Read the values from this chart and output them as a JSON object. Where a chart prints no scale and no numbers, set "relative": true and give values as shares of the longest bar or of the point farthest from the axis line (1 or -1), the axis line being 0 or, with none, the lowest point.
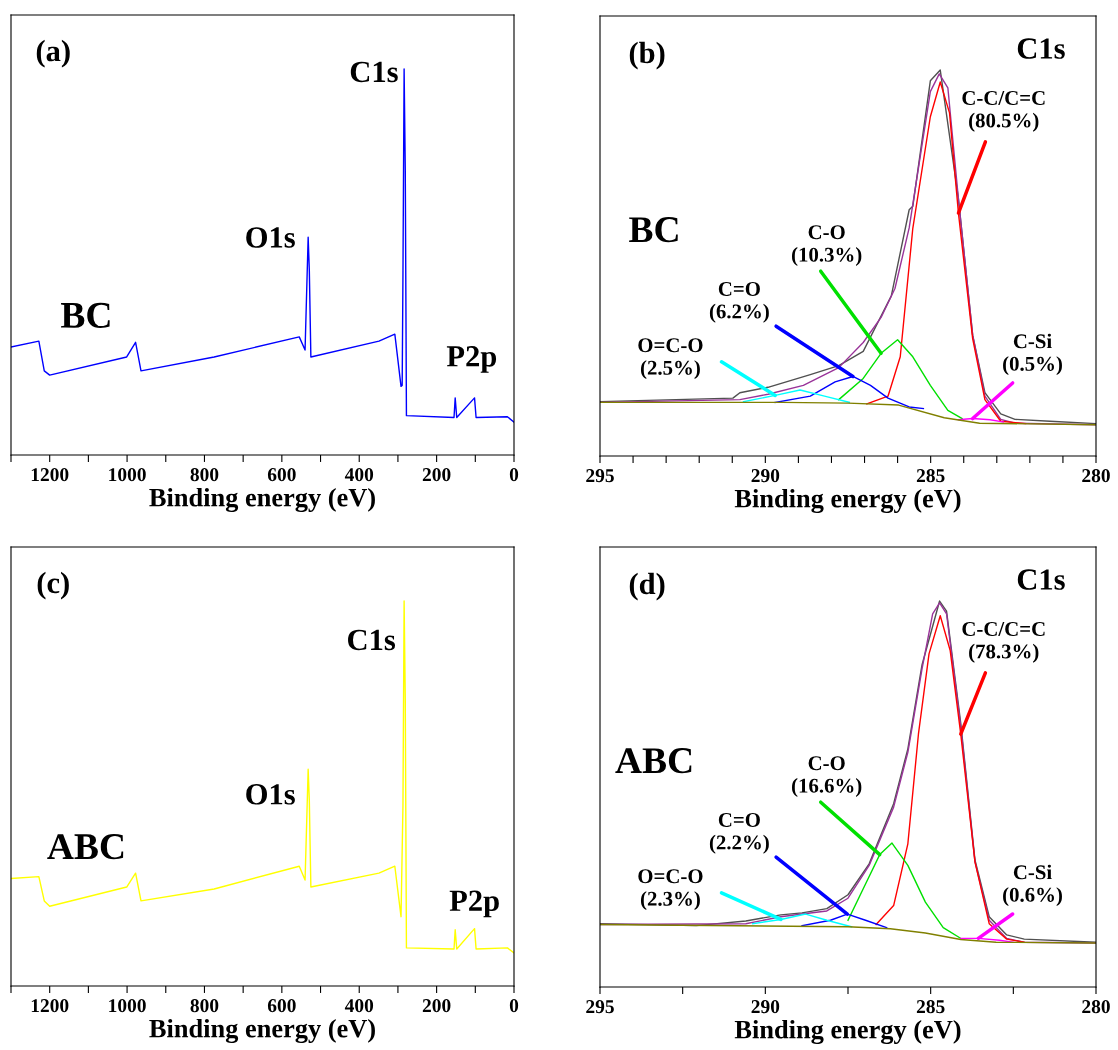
{
  "chart_data": [
    {
      "type": "line",
      "relative": true,
      "xlabel": "Binding energy (eV)",
      "xlim": [
        1300,
        0
      ],
      "xticks": [
        {
          "value": 1300,
          "label": null
        },
        1200,
        {
          "value": 1100,
          "label": null
        },
        1000,
        {
          "value": 900,
          "label": null
        },
        800,
        {
          "value": 700,
          "label": null
        },
        600,
        {
          "value": 500,
          "label": null
        },
        400,
        {
          "value": 300,
          "label": null
        },
        200,
        {
          "value": 100,
          "label": null
        },
        0
      ],
      "grid": false,
      "legend": false,
      "annotations": [
        "(a)",
        {
          "text": "C1s",
          "x": 284,
          "y": 1.0
        },
        {
          "text": "O1s",
          "x": 532,
          "y": 0.564
        },
        "BC",
        {
          "text": "P2p",
          "x": 152,
          "y": 0.148
        }
      ],
      "series": [
        {
          "color": "#0000ff",
          "x": [
            1300,
            1228,
            1214,
            1200,
            1001,
            978,
            964,
            775,
            555,
            540,
            532,
            529,
            525,
            349,
            308,
            292,
            289,
            287,
            284,
            281,
            278,
            155,
            152,
            148,
            102,
            98,
            17,
            0
          ],
          "values": [
            0.28,
            0.295,
            0.218,
            0.207,
            0.254,
            0.292,
            0.218,
            0.254,
            0.306,
            0.272,
            0.564,
            0.479,
            0.254,
            0.295,
            0.313,
            0.178,
            0.18,
            0.465,
            1.0,
            0.739,
            0.102,
            0.097,
            0.148,
            0.097,
            0.148,
            0.097,
            0.099,
            0.085
          ]
        }
      ]
    },
    {
      "type": "line",
      "relative": true,
      "xlabel": "Binding energy (eV)",
      "xlim": [
        295,
        280
      ],
      "xticks": [
        295,
        {
          "value": 294,
          "label": null
        },
        {
          "value": 293,
          "label": null
        },
        {
          "value": 292,
          "label": null
        },
        {
          "value": 291,
          "label": null
        },
        290,
        {
          "value": 289,
          "label": null
        },
        {
          "value": 288,
          "label": null
        },
        {
          "value": 287,
          "label": null
        },
        {
          "value": 286,
          "label": null
        },
        285,
        {
          "value": 284,
          "label": null
        },
        {
          "value": 283,
          "label": null
        },
        {
          "value": 282,
          "label": null
        },
        {
          "value": 281,
          "label": null
        },
        280
      ],
      "grid": false,
      "legend": false,
      "annotations": [
        "(b)",
        "C1s",
        "BC"
      ],
      "series": [
        {
          "color": "#505050",
          "x": [
            295,
            290.98,
            290.77,
            289.92,
            288.64,
            287.78,
            287.04,
            286.19,
            285.65,
            285.54,
            285.01,
            284.71,
            284.16,
            283.73,
            283.36,
            282.88,
            282.45,
            281.39,
            280
          ],
          "values": [
            0.141,
            0.15,
            0.164,
            0.178,
            0.211,
            0.234,
            0.271,
            0.415,
            0.638,
            0.647,
            0.972,
            1.0,
            0.666,
            0.313,
            0.164,
            0.109,
            0.095,
            0.09,
            0.084
          ]
        },
        {
          "color": "#993399",
          "x": [
            295,
            290.77,
            289.92,
            288.85,
            287.78,
            287.04,
            286.5,
            286.08,
            285.65,
            285.33,
            285.01,
            284.74,
            284.48,
            284.16,
            283.73,
            283.36,
            282.88,
            282.45,
            280
          ],
          "values": [
            0.139,
            0.146,
            0.16,
            0.183,
            0.229,
            0.294,
            0.359,
            0.434,
            0.591,
            0.768,
            0.944,
            0.99,
            0.954,
            0.666,
            0.313,
            0.155,
            0.095,
            0.085,
            0.081
          ]
        },
        {
          "name": "C-C/C=C\n(80.5%)",
          "color": "#ff0000",
          "x": [
            286.93,
            286.29,
            285.92,
            285.54,
            285.01,
            284.71,
            284.43,
            284.16,
            283.73,
            283.36,
            282.88,
            282.13
          ],
          "values": [
            0.135,
            0.155,
            0.257,
            0.59,
            0.879,
            0.969,
            0.889,
            0.629,
            0.304,
            0.146,
            0.09,
            0.084
          ]
        },
        {
          "name": "C-O\n(10.3%)",
          "color": "#00e000",
          "x": [
            287.78,
            287.04,
            286.5,
            286.0,
            285.54,
            285.01,
            284.48,
            284.05
          ],
          "values": [
            0.146,
            0.201,
            0.266,
            0.301,
            0.257,
            0.183,
            0.118,
            0.097
          ]
        },
        {
          "name": "C=O\n(6.2%)",
          "color": "#0000ff",
          "x": [
            289.7,
            288.64,
            287.89,
            287.35,
            286.82,
            286.29,
            285.65,
            285.22
          ],
          "values": [
            0.139,
            0.155,
            0.192,
            0.206,
            0.183,
            0.15,
            0.127,
            0.123
          ]
        },
        {
          "name": "O=C-O\n(2.5%)",
          "color": "#00ffff",
          "x": [
            290.66,
            289.7,
            288.95,
            288.21,
            287.46
          ],
          "values": [
            0.141,
            0.157,
            0.171,
            0.155,
            0.139
          ]
        },
        {
          "name": "C-Si\n(0.5%)",
          "color": "#ff00ff",
          "x": [
            284.16,
            283.73,
            283.2,
            282.8
          ],
          "values": [
            0.094,
            0.097,
            0.094,
            0.088
          ]
        },
        {
          "color": "#808000",
          "x": [
            295,
            289.5,
            287.5,
            285.97,
            284.59,
            283.52,
            280
          ],
          "values": [
            0.139,
            0.139,
            0.137,
            0.132,
            0.099,
            0.085,
            0.081
          ]
        }
      ]
    },
    {
      "type": "line",
      "relative": true,
      "xlabel": "Binding energy (eV)",
      "xlim": [
        1300,
        0
      ],
      "xticks": [
        {
          "value": 1300,
          "label": null
        },
        1200,
        {
          "value": 1100,
          "label": null
        },
        1000,
        {
          "value": 900,
          "label": null
        },
        800,
        {
          "value": 700,
          "label": null
        },
        600,
        {
          "value": 500,
          "label": null
        },
        400,
        {
          "value": 300,
          "label": null
        },
        200,
        {
          "value": 100,
          "label": null
        },
        0
      ],
      "grid": false,
      "legend": false,
      "annotations": [
        "(c)",
        {
          "text": "C1s",
          "x": 284,
          "y": 1.0
        },
        {
          "text": "O1s",
          "x": 532,
          "y": 0.563
        },
        "ABC",
        {
          "text": "P2p",
          "x": 152,
          "y": 0.146
        }
      ],
      "series": [
        {
          "color": "#ffff00",
          "x": [
            1300,
            1228,
            1214,
            1200,
            1001,
            978,
            964,
            775,
            555,
            540,
            532,
            529,
            525,
            349,
            308,
            292,
            287,
            284,
            281,
            278,
            155,
            152,
            148,
            102,
            98,
            17,
            0
          ],
          "values": [
            0.279,
            0.284,
            0.221,
            0.207,
            0.257,
            0.293,
            0.221,
            0.252,
            0.311,
            0.275,
            0.563,
            0.482,
            0.257,
            0.293,
            0.311,
            0.18,
            0.468,
            1.0,
            0.743,
            0.099,
            0.096,
            0.146,
            0.096,
            0.149,
            0.096,
            0.099,
            0.086
          ]
        }
      ]
    },
    {
      "type": "line",
      "relative": true,
      "xlabel": "Binding energy (eV)",
      "xlim": [
        295,
        280
      ],
      "xticks": [
        295,
        {
          "value": 292.5,
          "label": null
        },
        290,
        {
          "value": 287.5,
          "label": null
        },
        285,
        {
          "value": 282.5,
          "label": null
        },
        280
      ],
      "grid": false,
      "legend": false,
      "annotations": [
        "(d)",
        "C1s",
        "ABC"
      ],
      "series": [
        {
          "color": "#505050",
          "x": [
            295,
            292.09,
            290.59,
            289.53,
            288.89,
            288.14,
            287.5,
            286.86,
            286.12,
            285.69,
            285.26,
            284.73,
            284.52,
            284.09,
            283.66,
            283.23,
            282.7,
            282.17,
            280
          ],
          "values": [
            0.164,
            0.159,
            0.171,
            0.187,
            0.192,
            0.203,
            0.239,
            0.319,
            0.475,
            0.617,
            0.835,
            1.0,
            0.974,
            0.683,
            0.329,
            0.182,
            0.135,
            0.124,
            0.116
          ]
        },
        {
          "color": "#993399",
          "x": [
            295,
            290.59,
            289.53,
            288.89,
            288.14,
            287.5,
            286.86,
            286.12,
            285.69,
            285.26,
            284.94,
            284.73,
            284.52,
            284.09,
            283.66,
            283.23,
            282.7,
            282.17,
            280
          ],
          "values": [
            0.162,
            0.164,
            0.182,
            0.189,
            0.197,
            0.23,
            0.315,
            0.466,
            0.608,
            0.825,
            0.967,
            0.995,
            0.967,
            0.674,
            0.324,
            0.173,
            0.126,
            0.116,
            0.114
          ]
        },
        {
          "name": "C-C/C=C\n(78.3%)",
          "color": "#ff0000",
          "x": [
            286.65,
            286.12,
            285.69,
            285.37,
            285.05,
            284.71,
            284.41,
            284.09,
            283.66,
            283.23,
            282.7,
            282.17
          ],
          "values": [
            0.162,
            0.211,
            0.371,
            0.655,
            0.863,
            0.962,
            0.872,
            0.655,
            0.324,
            0.164,
            0.124,
            0.116
          ]
        },
        {
          "name": "C-O\n(16.6%)",
          "color": "#00e000",
          "x": [
            287.5,
            286.97,
            286.54,
            286.17,
            285.69,
            285.16,
            284.62,
            284.09
          ],
          "values": [
            0.173,
            0.267,
            0.343,
            0.373,
            0.315,
            0.22,
            0.154,
            0.126
          ]
        },
        {
          "name": "C=O\n(2.2%)",
          "color": "#0000ff",
          "x": [
            288.89,
            288.03,
            287.52,
            286.97,
            286.33
          ],
          "values": [
            0.159,
            0.173,
            0.189,
            0.173,
            0.154
          ]
        },
        {
          "name": "O=C-O\n(2.3%)",
          "color": "#00ffff",
          "x": [
            290.38,
            289.53,
            288.78,
            288.14,
            287.39
          ],
          "values": [
            0.164,
            0.175,
            0.189,
            0.173,
            0.156
          ]
        },
        {
          "name": "C-Si\n(0.6%)",
          "color": "#ff00ff",
          "x": [
            284.09,
            283.56,
            282.92,
            282.49
          ],
          "values": [
            0.126,
            0.126,
            0.121,
            0.116
          ]
        },
        {
          "color": "#808000",
          "x": [
            295,
            287.5,
            286.22,
            285.16,
            284.09,
            283.02,
            280
          ],
          "values": [
            0.162,
            0.156,
            0.151,
            0.14,
            0.123,
            0.116,
            0.114
          ]
        }
      ]
    }
  ]
}
